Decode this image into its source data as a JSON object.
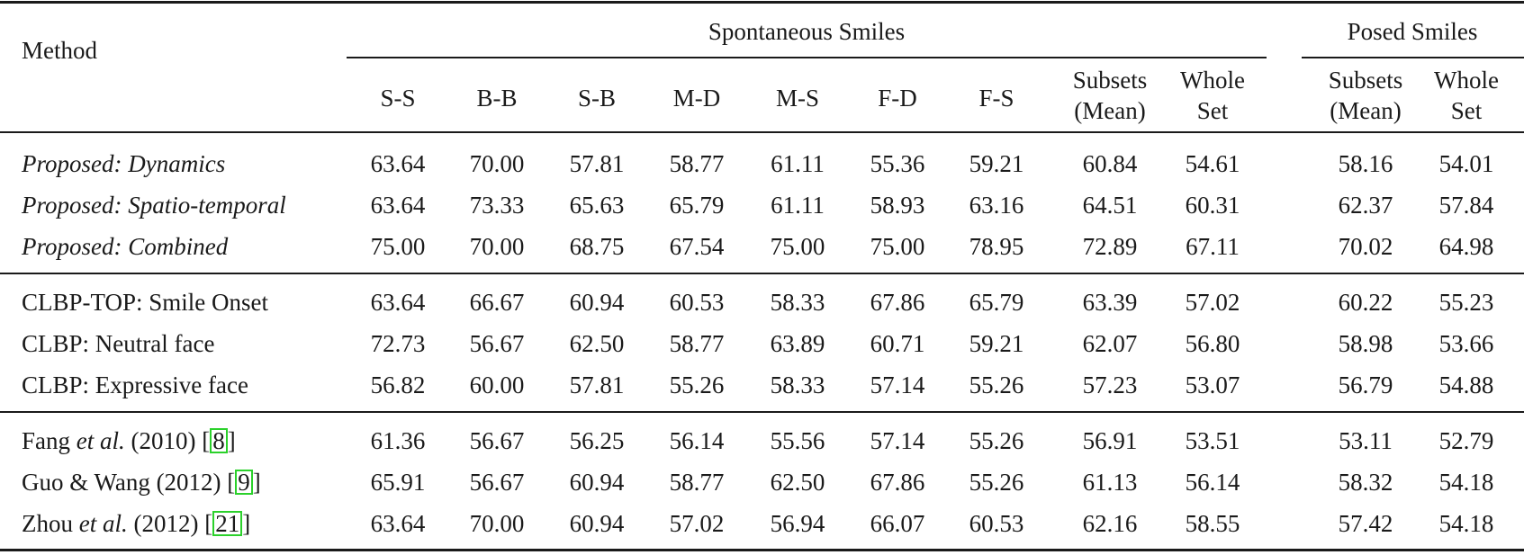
{
  "table": {
    "headers": {
      "method": "Method",
      "spontaneous_group": "Spontaneous Smiles",
      "posed_group": "Posed Smiles",
      "columns": [
        {
          "line1": "S-S",
          "line2": ""
        },
        {
          "line1": "B-B",
          "line2": ""
        },
        {
          "line1": "S-B",
          "line2": ""
        },
        {
          "line1": "M-D",
          "line2": ""
        },
        {
          "line1": "M-S",
          "line2": ""
        },
        {
          "line1": "F-D",
          "line2": ""
        },
        {
          "line1": "F-S",
          "line2": ""
        },
        {
          "line1": "Subsets",
          "line2": "(Mean)"
        },
        {
          "line1": "Whole",
          "line2": "Set"
        },
        {
          "line1": "Subsets",
          "line2": "(Mean)"
        },
        {
          "line1": "Whole",
          "line2": "Set"
        }
      ]
    },
    "rows": [
      {
        "method": {
          "pre": "Proposed: Dynamics",
          "it": "",
          "post": "",
          "cite": "",
          "end": ""
        },
        "italic": true,
        "values": [
          "63.64",
          "70.00",
          "57.81",
          "58.77",
          "61.11",
          "55.36",
          "59.21",
          "60.84",
          "54.61",
          "58.16",
          "54.01"
        ]
      },
      {
        "method": {
          "pre": "Proposed: Spatio-temporal",
          "it": "",
          "post": "",
          "cite": "",
          "end": ""
        },
        "italic": true,
        "values": [
          "63.64",
          "73.33",
          "65.63",
          "65.79",
          "61.11",
          "58.93",
          "63.16",
          "64.51",
          "60.31",
          "62.37",
          "57.84"
        ]
      },
      {
        "method": {
          "pre": "Proposed: Combined",
          "it": "",
          "post": "",
          "cite": "",
          "end": ""
        },
        "italic": true,
        "values": [
          "75.00",
          "70.00",
          "68.75",
          "67.54",
          "75.00",
          "75.00",
          "78.95",
          "72.89",
          "67.11",
          "70.02",
          "64.98"
        ]
      },
      {
        "method": {
          "pre": "CLBP-TOP: Smile Onset",
          "it": "",
          "post": "",
          "cite": "",
          "end": ""
        },
        "italic": false,
        "values": [
          "63.64",
          "66.67",
          "60.94",
          "60.53",
          "58.33",
          "67.86",
          "65.79",
          "63.39",
          "57.02",
          "60.22",
          "55.23"
        ]
      },
      {
        "method": {
          "pre": "CLBP: Neutral face",
          "it": "",
          "post": "",
          "cite": "",
          "end": ""
        },
        "italic": false,
        "values": [
          "72.73",
          "56.67",
          "62.50",
          "58.77",
          "63.89",
          "60.71",
          "59.21",
          "62.07",
          "56.80",
          "58.98",
          "53.66"
        ]
      },
      {
        "method": {
          "pre": "CLBP: Expressive face",
          "it": "",
          "post": "",
          "cite": "",
          "end": ""
        },
        "italic": false,
        "values": [
          "56.82",
          "60.00",
          "57.81",
          "55.26",
          "58.33",
          "57.14",
          "55.26",
          "57.23",
          "53.07",
          "56.79",
          "54.88"
        ]
      },
      {
        "method": {
          "pre": "Fang ",
          "it": "et al.",
          "post": " (2010) [",
          "cite": "8",
          "end": "]"
        },
        "italic": false,
        "values": [
          "61.36",
          "56.67",
          "56.25",
          "56.14",
          "55.56",
          "57.14",
          "55.26",
          "56.91",
          "53.51",
          "53.11",
          "52.79"
        ]
      },
      {
        "method": {
          "pre": "Guo & Wang (2012) [",
          "it": "",
          "post": "",
          "cite": "9",
          "end": "]"
        },
        "italic": false,
        "values": [
          "65.91",
          "56.67",
          "60.94",
          "58.77",
          "62.50",
          "67.86",
          "55.26",
          "61.13",
          "56.14",
          "58.32",
          "54.18"
        ]
      },
      {
        "method": {
          "pre": "Zhou ",
          "it": "et al.",
          "post": " (2012) [",
          "cite": "21",
          "end": "]"
        },
        "italic": false,
        "values": [
          "63.64",
          "70.00",
          "60.94",
          "57.02",
          "56.94",
          "66.07",
          "60.53",
          "62.16",
          "58.55",
          "57.42",
          "54.18"
        ]
      }
    ],
    "colors": {
      "rule": "#1a1a1a",
      "citation_box": "#2bd12b"
    }
  }
}
